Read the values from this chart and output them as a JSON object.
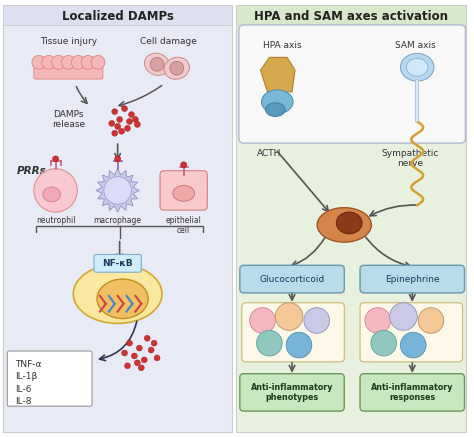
{
  "left_panel_bg": "#e8eaf6",
  "right_panel_bg": "#e8f0e0",
  "left_header": "Localized DAMPs",
  "right_header": "HPA and SAM axes activation",
  "header_fontsize": 8.5,
  "fig_bg": "#ffffff",
  "left_labels": {
    "tissue_injury": "Tissue injury",
    "cell_damage": "Cell damage",
    "damps_release": "DAMPs\nrelease",
    "prrs": "PRRs",
    "neutrophil": "neutrophil",
    "macrophage": "macrophage",
    "epithelial_cell": "epithelial\ncell",
    "nfkb": "NF-κB",
    "cytokines": "TNF-α\nIL-1β\nIL-6\nIL-8"
  },
  "right_labels": {
    "hpa_axis": "HPA axis",
    "sam_axis": "SAM axis",
    "acth": "ACTH",
    "sympathetic_nerve": "Sympathetic\nnerve",
    "glucocorticoid": "Glucocorticoid",
    "epinephrine": "Epinephrine",
    "anti_inflam_phenotypes": "Anti-inflammatory\nphenotypes",
    "anti_inflam_responses": "Anti-inflammatory\nresponses"
  },
  "arrow_color": "#555555"
}
